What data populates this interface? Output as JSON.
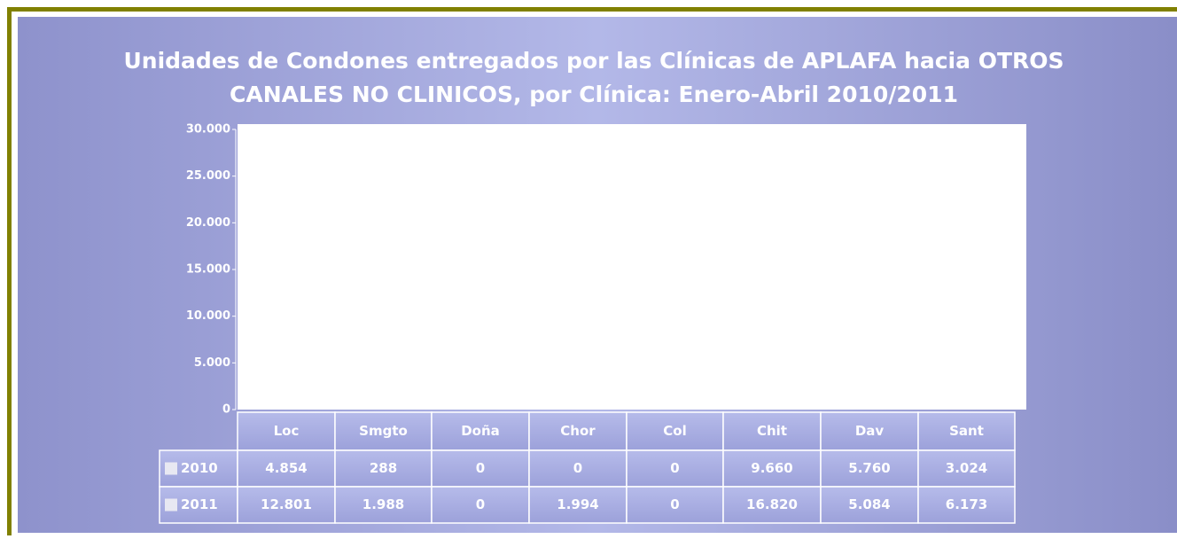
{
  "chart_data": {
    "type": "bar",
    "title": "Unidades de Condones entregados por las Clínicas de APLAFA hacia OTROS CANALES NO CLINICOS, por Clínica: Enero-Abril 2010/2011",
    "title_lines": [
      "Unidades de Condones entregados por las Clínicas de APLAFA hacia OTROS",
      "CANALES NO CLINICOS, por Clínica: Enero-Abril 2010/2011"
    ],
    "categories": [
      "Loc",
      "Smgto",
      "Doña",
      "Chor",
      "Col",
      "Chit",
      "Dav",
      "Sant"
    ],
    "series": [
      {
        "name": "2010",
        "color": "#e8e8f2",
        "values": [
          4854,
          288,
          0,
          0,
          0,
          9660,
          5760,
          3024
        ],
        "value_labels": [
          "4.854",
          "288",
          "0",
          "0",
          "0",
          "9.660",
          "5.760",
          "3.024"
        ]
      },
      {
        "name": "2011",
        "color": "#e8e8f2",
        "values": [
          12801,
          1988,
          0,
          1994,
          0,
          16820,
          5084,
          6173
        ],
        "value_labels": [
          "12.801",
          "1.988",
          "0",
          "1.994",
          "0",
          "16.820",
          "5.084",
          "6.173"
        ]
      }
    ],
    "ylim": [
      0,
      30000
    ],
    "yticks": [
      0,
      {
        "value": 5000,
        "label": "5.000"
      },
      {
        "value": 10000,
        "label": "10.000"
      },
      {
        "value": 15000,
        "label": "15.000"
      },
      {
        "value": 20000,
        "label": "20.000"
      },
      {
        "value": 25000,
        "label": "25.000"
      },
      {
        "value": 30000,
        "label": "30.000"
      }
    ]
  }
}
